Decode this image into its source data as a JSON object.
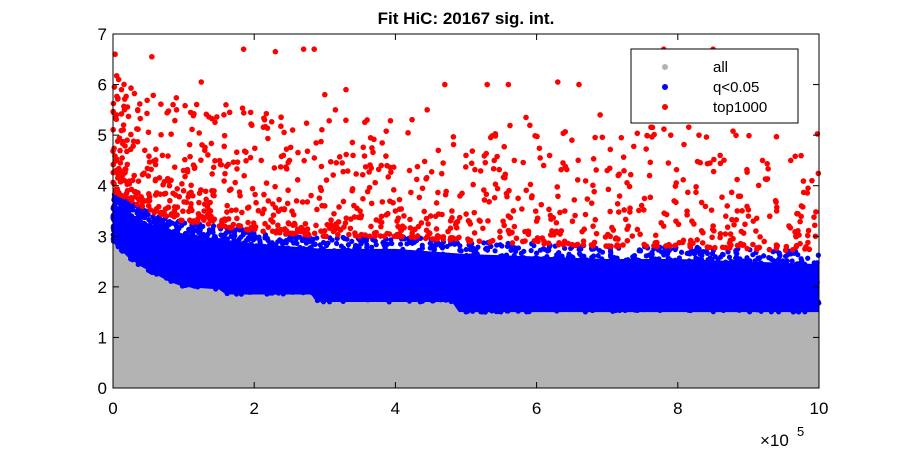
{
  "chart_data": {
    "type": "scatter",
    "title": "Fit HiC: 20167 sig. int.",
    "xlabel": "",
    "ylabel": "",
    "xlim": [
      0,
      1000000
    ],
    "ylim": [
      0,
      7
    ],
    "x_ticks": [
      0,
      200000,
      400000,
      600000,
      800000,
      1000000
    ],
    "x_tick_labels": [
      "0",
      "2",
      "4",
      "6",
      "8",
      "10"
    ],
    "x_exponent_label": "×10",
    "x_exponent_power": "5",
    "y_ticks": [
      0,
      1,
      2,
      3,
      4,
      5,
      6,
      7
    ],
    "y_tick_labels": [
      "0",
      "1",
      "2",
      "3",
      "4",
      "5",
      "6",
      "7"
    ],
    "grid": false,
    "legend_position": "top-right",
    "series": [
      {
        "name": "all",
        "color": "#b3b3b3",
        "description_lower_floor": 0,
        "upper_envelope": [
          [
            0,
            2.9
          ],
          [
            20000,
            2.6
          ],
          [
            40000,
            2.4
          ],
          [
            60000,
            2.25
          ],
          [
            80000,
            2.1
          ],
          [
            100000,
            2.0
          ],
          [
            150000,
            1.95
          ],
          [
            160000,
            1.85
          ],
          [
            280000,
            1.85
          ],
          [
            290000,
            1.7
          ],
          [
            480000,
            1.7
          ],
          [
            490000,
            1.5
          ],
          [
            1000000,
            1.5
          ]
        ]
      },
      {
        "name": "q<0.05",
        "color": "#0000ff",
        "upper_envelope": [
          [
            0,
            3.9
          ],
          [
            50000,
            3.5
          ],
          [
            100000,
            3.3
          ],
          [
            200000,
            3.1
          ],
          [
            300000,
            3.0
          ],
          [
            400000,
            3.0
          ],
          [
            500000,
            2.9
          ],
          [
            600000,
            2.85
          ],
          [
            700000,
            2.8
          ],
          [
            800000,
            2.8
          ],
          [
            900000,
            2.75
          ],
          [
            1000000,
            2.7
          ]
        ]
      },
      {
        "name": "top1000",
        "color": "#ff0000",
        "points": [
          [
            3000,
            6.6
          ],
          [
            8000,
            6.1
          ],
          [
            12000,
            5.9
          ],
          [
            55000,
            6.55
          ],
          [
            125000,
            6.05
          ],
          [
            185000,
            6.7
          ],
          [
            230000,
            6.65
          ],
          [
            270000,
            6.7
          ],
          [
            285000,
            6.7
          ],
          [
            300000,
            5.8
          ],
          [
            330000,
            5.9
          ],
          [
            470000,
            6.0
          ],
          [
            530000,
            6.0
          ],
          [
            560000,
            6.0
          ],
          [
            630000,
            6.05
          ],
          [
            660000,
            6.0
          ],
          [
            780000,
            6.7
          ],
          [
            850000,
            6.7
          ],
          [
            5000,
            5.4
          ],
          [
            15000,
            5.2
          ],
          [
            35000,
            5.5
          ],
          [
            90000,
            5.5
          ],
          [
            110000,
            5.45
          ],
          [
            160000,
            5.6
          ],
          [
            195000,
            5.45
          ],
          [
            315000,
            5.5
          ],
          [
            360000,
            5.3
          ],
          [
            445000,
            5.5
          ],
          [
            585000,
            5.35
          ],
          [
            690000,
            5.4
          ],
          [
            770000,
            5.3
          ],
          [
            790000,
            5.0
          ],
          [
            830000,
            5.0
          ],
          [
            720000,
            4.95
          ],
          [
            650000,
            4.9
          ],
          [
            20000,
            4.9
          ],
          [
            45000,
            4.7
          ],
          [
            70000,
            4.6
          ],
          [
            130000,
            4.7
          ],
          [
            210000,
            4.5
          ],
          [
            250000,
            4.5
          ],
          [
            340000,
            4.6
          ],
          [
            380000,
            4.4
          ],
          [
            420000,
            4.3
          ],
          [
            500000,
            4.6
          ],
          [
            540000,
            4.5
          ],
          [
            610000,
            4.4
          ],
          [
            700000,
            4.3
          ],
          [
            760000,
            4.2
          ],
          [
            860000,
            4.6
          ],
          [
            920000,
            4.5
          ],
          [
            960000,
            4.5
          ],
          [
            990000,
            4.1
          ],
          [
            10000,
            4.3
          ],
          [
            30000,
            4.2
          ],
          [
            60000,
            4.1
          ],
          [
            80000,
            4.0
          ],
          [
            100000,
            3.9
          ],
          [
            140000,
            3.9
          ],
          [
            180000,
            3.8
          ],
          [
            220000,
            3.7
          ],
          [
            260000,
            3.7
          ],
          [
            300000,
            3.6
          ],
          [
            350000,
            3.5
          ],
          [
            400000,
            3.5
          ],
          [
            450000,
            3.4
          ],
          [
            480000,
            3.5
          ],
          [
            520000,
            3.3
          ],
          [
            560000,
            3.4
          ],
          [
            600000,
            3.3
          ],
          [
            640000,
            3.5
          ],
          [
            680000,
            3.2
          ],
          [
            730000,
            3.2
          ],
          [
            780000,
            3.2
          ],
          [
            820000,
            3.3
          ],
          [
            870000,
            3.6
          ],
          [
            900000,
            3.4
          ],
          [
            940000,
            3.5
          ],
          [
            975000,
            3.6
          ],
          [
            995000,
            3.0
          ]
        ]
      }
    ]
  }
}
